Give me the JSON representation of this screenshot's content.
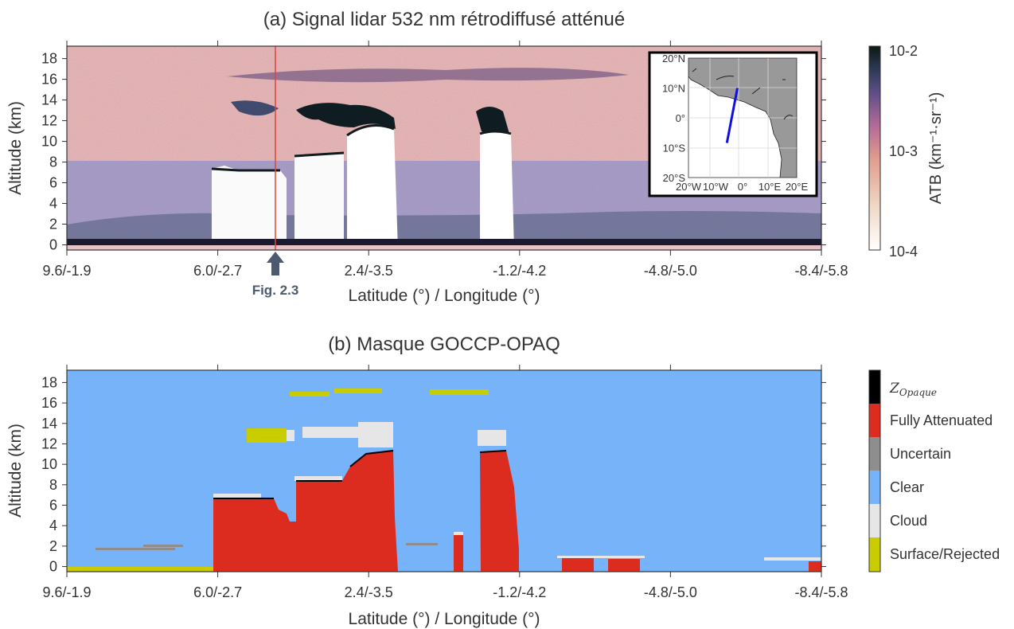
{
  "colors": {
    "clear": "#76b3f8",
    "fully_attenuated": "#dc2c1f",
    "cloud": "#e6e6e6",
    "uncertain": "#8e8e8e",
    "surface": "#c9cd00",
    "zopaque": "#000000",
    "arrow": "#4b5a6e",
    "map_land": "#999999",
    "track": "#1010e0"
  },
  "chart_data": [
    {
      "type": "heatmap",
      "panel": "a",
      "title": "(a) Signal lidar 532 nm rétrodiffusé atténué",
      "xlabel": "Latitude (°) / Longitude (°)",
      "ylabel": "Altitude (km)",
      "x_ticks": [
        "9.6/-1.9",
        "6.0/-2.7",
        "2.4/-3.5",
        "-1.2/-4.2",
        "-4.8/-5.0",
        "-8.4/-5.8"
      ],
      "y_ticks": [
        "0",
        "2",
        "4",
        "6",
        "8",
        "10",
        "12",
        "14",
        "16",
        "18"
      ],
      "ylim": [
        -0.5,
        19.2
      ],
      "colorbar": {
        "label": "ATB (km⁻¹·sr⁻¹)",
        "scale": "log",
        "ticks": [
          "10-2",
          "10-3",
          "10-4"
        ],
        "range": [
          0.0001,
          0.01
        ]
      },
      "annotation": {
        "text": "Fig. 2.3",
        "position": "bottom, near 4.3°N"
      },
      "inset_map": {
        "lat_ticks": [
          "20°N",
          "10°N",
          "0°",
          "10°S",
          "20°S"
        ],
        "lon_ticks": [
          "20°W",
          "10°W",
          "0°",
          "10°E",
          "20°E"
        ],
        "track": {
          "start_lat": 10,
          "start_lon": -1.9,
          "end_lat": -8.4,
          "end_lon": -5.8
        }
      }
    },
    {
      "type": "heatmap",
      "panel": "b",
      "title": "(b) Masque GOCCP-OPAQ",
      "xlabel": "Latitude (°) / Longitude (°)",
      "ylabel": "Altitude (km)",
      "x_ticks": [
        "9.6/-1.9",
        "6.0/-2.7",
        "2.4/-3.5",
        "-1.2/-4.2",
        "-4.8/-5.0",
        "-8.4/-5.8"
      ],
      "y_ticks": [
        "0",
        "2",
        "4",
        "6",
        "8",
        "10",
        "12",
        "14",
        "16",
        "18"
      ],
      "ylim": [
        -0.5,
        19.2
      ],
      "legend": [
        "Z_Opaque",
        "Fully Attenuated",
        "Uncertain",
        "Clear",
        "Cloud",
        "Surface/Rejected"
      ],
      "legend_zopaque_sub": "Opaque"
    }
  ]
}
